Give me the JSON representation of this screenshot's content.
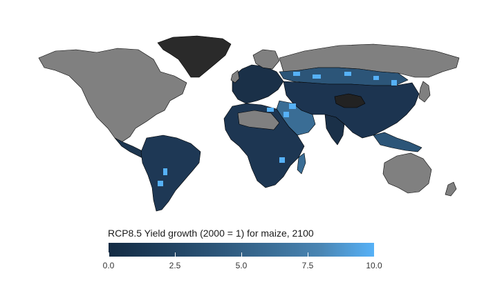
{
  "legend": {
    "title": "RCP8.5 Yield growth (2000 = 1) for maize, 2100",
    "min": 0,
    "max": 10,
    "ticks": [
      {
        "value": 0,
        "label": "0.0"
      },
      {
        "value": 2.5,
        "label": "2.5"
      },
      {
        "value": 5,
        "label": "5.0"
      },
      {
        "value": 7.5,
        "label": "7.5"
      },
      {
        "value": 10,
        "label": "10.0"
      }
    ],
    "colors": {
      "low": "#132b43",
      "high": "#56b1f7"
    }
  },
  "map": {
    "no_data_color": "#808080",
    "border_color": "#000000",
    "background": "#ffffff"
  }
}
